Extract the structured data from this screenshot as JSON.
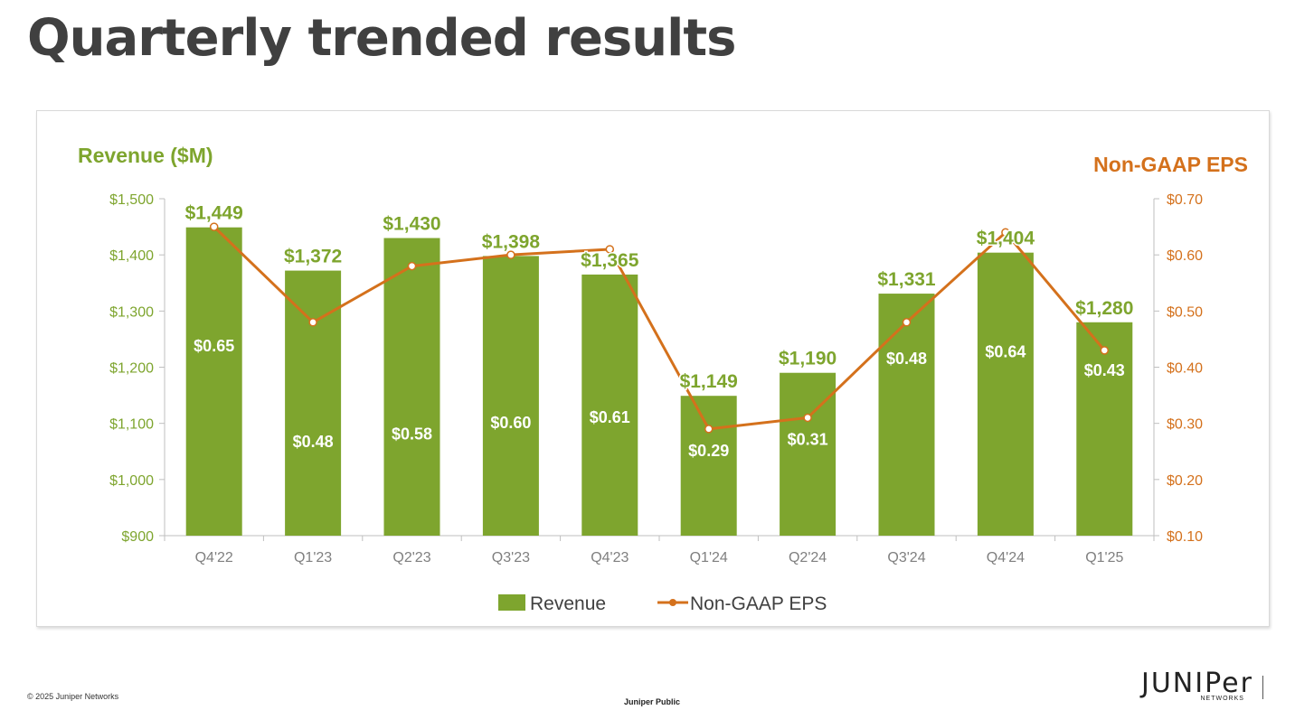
{
  "slide": {
    "title": "Quarterly trended results"
  },
  "footer": {
    "copyright": "© 2025 Juniper Networks",
    "classification": "Juniper Public",
    "logo_word": "JUNIPer",
    "logo_sub": "NETWORKS"
  },
  "colors": {
    "revenue": "#7ea52e",
    "eps": "#d4711c",
    "title_text": "#404040",
    "axis_text": "#7f7f7f"
  },
  "chart_data": {
    "type": "bar",
    "categories": [
      "Q4'22",
      "Q1'23",
      "Q2'23",
      "Q3'23",
      "Q4'23",
      "Q1'24",
      "Q2'24",
      "Q3'24",
      "Q4'24",
      "Q1'25"
    ],
    "y_left_title": "Revenue ($M)",
    "y_right_title": "Non-GAAP EPS",
    "y_left_range": [
      900,
      1500
    ],
    "y_left_ticks": [
      "$900",
      "$1,000",
      "$1,100",
      "$1,200",
      "$1,300",
      "$1,400",
      "$1,500"
    ],
    "y_right_range": [
      0.1,
      0.7
    ],
    "y_right_ticks": [
      "$0.10",
      "$0.20",
      "$0.30",
      "$0.40",
      "$0.50",
      "$0.60",
      "$0.70"
    ],
    "legend_position": "bottom-center",
    "grid": false,
    "series": [
      {
        "name": "Revenue",
        "type": "bar",
        "axis": "left",
        "values": [
          1449,
          1372,
          1430,
          1398,
          1365,
          1149,
          1190,
          1331,
          1404,
          1280
        ],
        "labels": [
          "$1,449",
          "$1,372",
          "$1,430",
          "$1,398",
          "$1,365",
          "$1,149",
          "$1,190",
          "$1,331",
          "$1,404",
          "$1,280"
        ]
      },
      {
        "name": "Non-GAAP EPS",
        "type": "line",
        "axis": "right",
        "values": [
          0.65,
          0.48,
          0.58,
          0.6,
          0.61,
          0.29,
          0.31,
          0.48,
          0.64,
          0.43
        ],
        "labels": [
          "$0.65",
          "$0.48",
          "$0.58",
          "$0.60",
          "$0.61",
          "$0.29",
          "$0.31",
          "$0.48",
          "$0.64",
          "$0.43"
        ]
      }
    ]
  }
}
